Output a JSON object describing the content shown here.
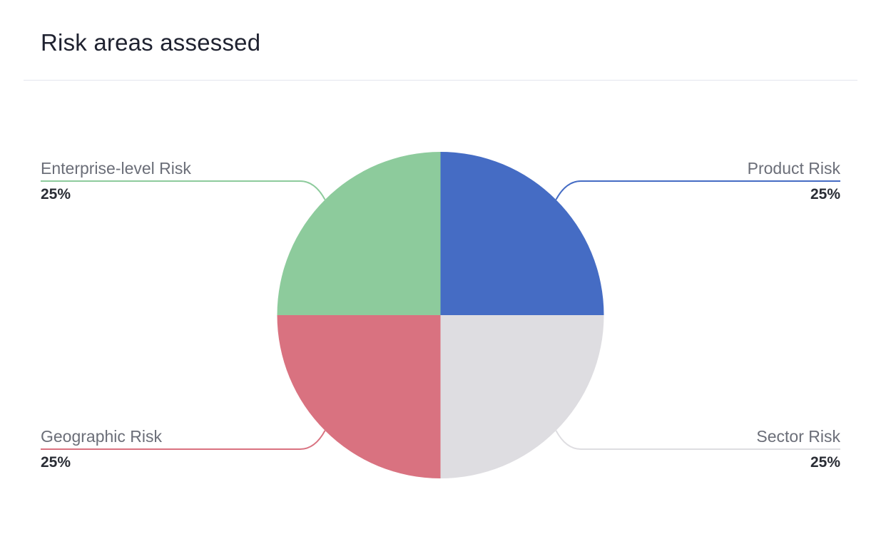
{
  "card": {
    "title": "Risk areas assessed"
  },
  "chart_data": {
    "type": "pie",
    "title": "Risk areas assessed",
    "slices": [
      {
        "label": "Product Risk",
        "value": 25,
        "display": "25%",
        "color": "#456cc4",
        "placement": "top-right"
      },
      {
        "label": "Sector Risk",
        "value": 25,
        "display": "25%",
        "color": "#dedde1",
        "placement": "bottom-right"
      },
      {
        "label": "Geographic Risk",
        "value": 25,
        "display": "25%",
        "color": "#d97280",
        "placement": "bottom-left"
      },
      {
        "label": "Enterprise-level Risk",
        "value": 25,
        "display": "25%",
        "color": "#8dcb9c",
        "placement": "top-left"
      }
    ],
    "label_color": "#6b6e78",
    "value_color": "#2a2d35"
  }
}
